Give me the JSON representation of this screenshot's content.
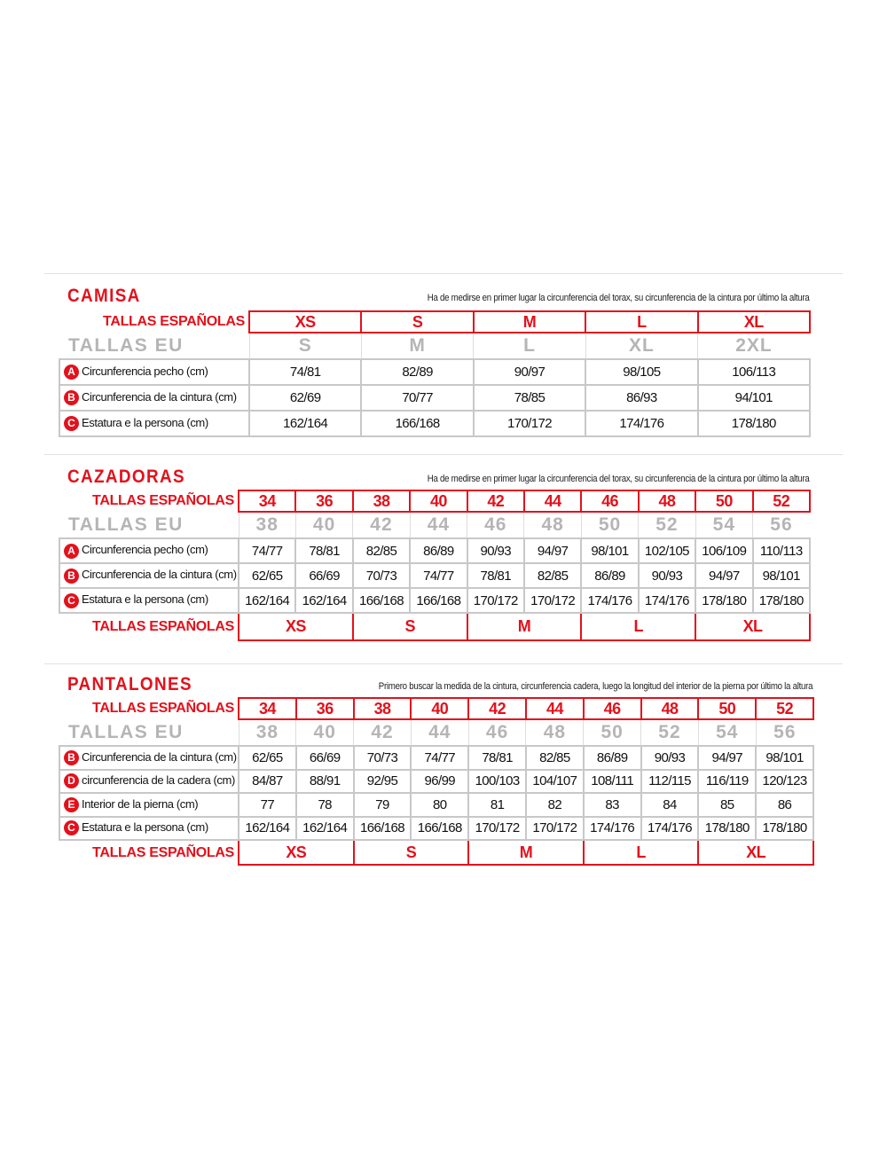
{
  "colors": {
    "accent": "#e3111b",
    "eu_gray": "#b5b5b5"
  },
  "sections": [
    {
      "title": "CAMISA",
      "note": "Ha de medirse en primer lugar la circunferencia del torax, su circunferencia de la cintura por último la altura",
      "es_label": "TALLAS ESPAÑOLAS",
      "es": [
        "XS",
        "S",
        "M",
        "L",
        "XL"
      ],
      "eu_label": "TALLAS EU",
      "eu": [
        "S",
        "M",
        "L",
        "XL",
        "2XL"
      ],
      "rows": [
        {
          "badge": "A",
          "label": "Circunferencia pecho (cm)",
          "values": [
            "74/81",
            "82/89",
            "90/97",
            "98/105",
            "106/113"
          ]
        },
        {
          "badge": "B",
          "label": "Circunferencia de la cintura (cm)",
          "values": [
            "62/69",
            "70/77",
            "78/85",
            "86/93",
            "94/101"
          ]
        },
        {
          "badge": "C",
          "label": "Estatura e la persona (cm)",
          "values": [
            "162/164",
            "166/168",
            "170/172",
            "174/176",
            "178/180"
          ]
        }
      ]
    },
    {
      "title": "CAZADORAS",
      "note": "Ha de medirse en primer lugar la circunferencia del torax, su circunferencia de la cintura por último la altura",
      "es_label": "TALLAS ESPAÑOLAS",
      "es": [
        "34",
        "36",
        "38",
        "40",
        "42",
        "44",
        "46",
        "48",
        "50",
        "52"
      ],
      "eu_label": "TALLAS EU",
      "eu": [
        "38",
        "40",
        "42",
        "44",
        "46",
        "48",
        "50",
        "52",
        "54",
        "56"
      ],
      "rows": [
        {
          "badge": "A",
          "label": "Circunferencia pecho (cm)",
          "values": [
            "74/77",
            "78/81",
            "82/85",
            "86/89",
            "90/93",
            "94/97",
            "98/101",
            "102/105",
            "106/109",
            "110/113"
          ]
        },
        {
          "badge": "B",
          "label": "Circunferencia de la cintura (cm)",
          "values": [
            "62/65",
            "66/69",
            "70/73",
            "74/77",
            "78/81",
            "82/85",
            "86/89",
            "90/93",
            "94/97",
            "98/101"
          ]
        },
        {
          "badge": "C",
          "label": "Estatura e la persona (cm)",
          "values": [
            "162/164",
            "162/164",
            "166/168",
            "166/168",
            "170/172",
            "170/172",
            "174/176",
            "174/176",
            "178/180",
            "178/180"
          ]
        }
      ],
      "bottom_label": "TALLAS ESPAÑOLAS",
      "bottom": [
        "XS",
        "S",
        "M",
        "L",
        "XL"
      ]
    },
    {
      "title": "PANTALONES",
      "note": "Primero buscar la medida de la cintura, circunferencia cadera, luego la longitud del interior de la pierna por último la altura",
      "es_label": "TALLAS ESPAÑOLAS",
      "es": [
        "34",
        "36",
        "38",
        "40",
        "42",
        "44",
        "46",
        "48",
        "50",
        "52"
      ],
      "eu_label": "TALLAS EU",
      "eu": [
        "38",
        "40",
        "42",
        "44",
        "46",
        "48",
        "50",
        "52",
        "54",
        "56"
      ],
      "rows": [
        {
          "badge": "B",
          "label": "Circunferencia de la cintura (cm)",
          "values": [
            "62/65",
            "66/69",
            "70/73",
            "74/77",
            "78/81",
            "82/85",
            "86/89",
            "90/93",
            "94/97",
            "98/101"
          ]
        },
        {
          "badge": "D",
          "label": "circunferencia de la cadera (cm)",
          "values": [
            "84/87",
            "88/91",
            "92/95",
            "96/99",
            "100/103",
            "104/107",
            "108/111",
            "112/115",
            "116/119",
            "120/123"
          ]
        },
        {
          "badge": "E",
          "label": "Interior de la pierna (cm)",
          "values": [
            "77",
            "78",
            "79",
            "80",
            "81",
            "82",
            "83",
            "84",
            "85",
            "86"
          ]
        },
        {
          "badge": "C",
          "label": "Estatura e la persona (cm)",
          "values": [
            "162/164",
            "162/164",
            "166/168",
            "166/168",
            "170/172",
            "170/172",
            "174/176",
            "174/176",
            "178/180",
            "178/180"
          ]
        }
      ],
      "bottom_label": "TALLAS ESPAÑOLAS",
      "bottom": [
        "XS",
        "S",
        "M",
        "L",
        "XL"
      ]
    }
  ]
}
